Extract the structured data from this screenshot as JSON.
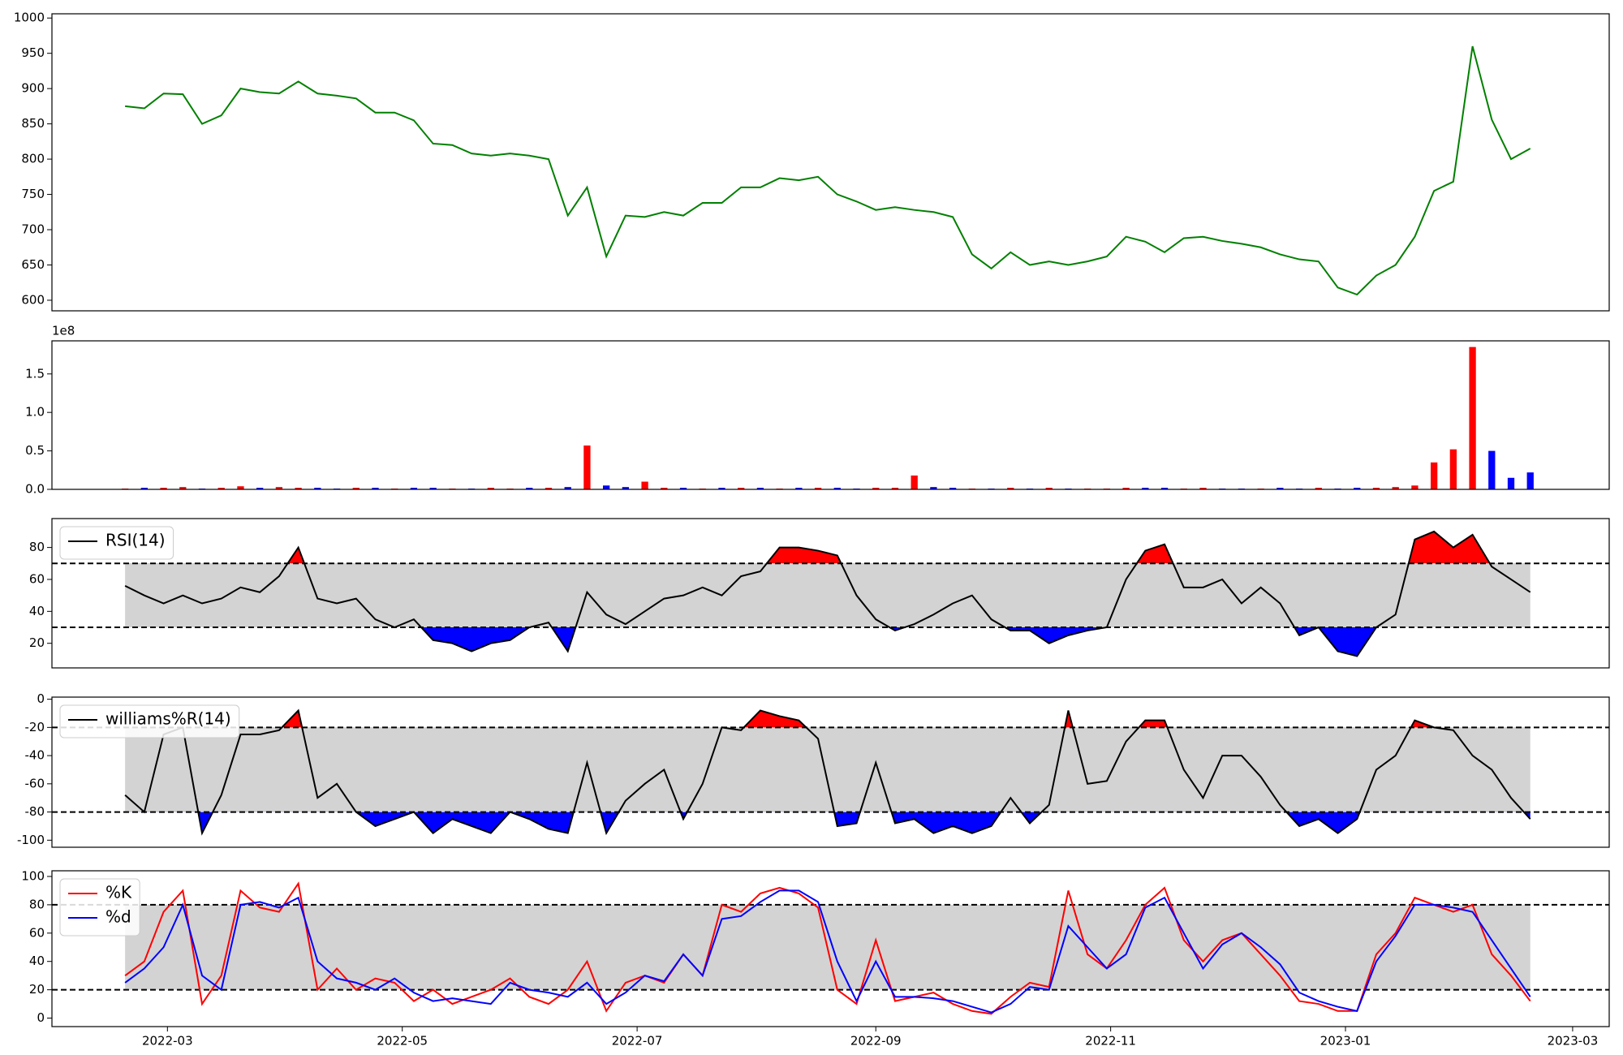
{
  "chart_data": [
    {
      "type": "line",
      "color": "green",
      "values": [
        875,
        872,
        893,
        892,
        850,
        862,
        900,
        895,
        893,
        910,
        893,
        890,
        886,
        866,
        866,
        855,
        822,
        820,
        808,
        805,
        808,
        805,
        800,
        720,
        760,
        662,
        720,
        718,
        725,
        720,
        738,
        738,
        760,
        760,
        773,
        770,
        775,
        750,
        740,
        728,
        732,
        728,
        725,
        718,
        665,
        645,
        668,
        650,
        655,
        650,
        655,
        662,
        690,
        683,
        668,
        688,
        690,
        684,
        680,
        675,
        665,
        658,
        655,
        618,
        608,
        635,
        650,
        690,
        755,
        768,
        960,
        856,
        800,
        815
      ],
      "xlim": [
        -3.8,
        77.1
      ],
      "ylim": [
        585,
        1006
      ],
      "yticks": [
        600,
        650,
        700,
        750,
        800,
        850,
        900,
        950,
        1000
      ]
    },
    {
      "type": "bar",
      "offset_label": "1e8",
      "values": [
        0.01,
        0.02,
        0.02,
        0.03,
        0.01,
        0.02,
        0.04,
        0.02,
        0.03,
        0.02,
        0.02,
        0.01,
        0.02,
        0.02,
        0.01,
        0.02,
        0.02,
        0.01,
        0.01,
        0.02,
        0.01,
        0.02,
        0.02,
        0.03,
        0.57,
        0.05,
        0.03,
        0.1,
        0.02,
        0.02,
        0.01,
        0.02,
        0.02,
        0.02,
        0.01,
        0.02,
        0.02,
        0.02,
        0.01,
        0.02,
        0.02,
        0.18,
        0.03,
        0.02,
        0.01,
        0.01,
        0.02,
        0.01,
        0.02,
        0.01,
        0.01,
        0.01,
        0.02,
        0.02,
        0.02,
        0.01,
        0.02,
        0.01,
        0.01,
        0.01,
        0.02,
        0.01,
        0.02,
        0.01,
        0.02,
        0.02,
        0.03,
        0.05,
        0.35,
        0.52,
        1.85,
        0.5,
        0.15,
        0.22
      ],
      "bar_colors": [
        "red",
        "blue",
        "red",
        "red",
        "blue",
        "red",
        "red",
        "blue",
        "red",
        "red",
        "blue",
        "blue",
        "red",
        "blue",
        "red",
        "blue",
        "blue",
        "red",
        "blue",
        "red",
        "red",
        "blue",
        "red",
        "blue",
        "red",
        "blue",
        "blue",
        "red",
        "red",
        "blue",
        "red",
        "blue",
        "red",
        "blue",
        "red",
        "blue",
        "red",
        "blue",
        "blue",
        "red",
        "red",
        "red",
        "blue",
        "blue",
        "red",
        "blue",
        "red",
        "blue",
        "red",
        "blue",
        "red",
        "red",
        "red",
        "blue",
        "blue",
        "red",
        "red",
        "blue",
        "blue",
        "red",
        "blue",
        "blue",
        "red",
        "blue",
        "blue",
        "red",
        "red",
        "red",
        "red",
        "red",
        "red",
        "blue",
        "blue",
        "blue"
      ],
      "xlim": [
        -3.8,
        77.1
      ],
      "ylim": [
        0,
        1.93
      ],
      "yticks": [
        {
          "value": 0,
          "label": "0.0"
        },
        0.5,
        {
          "value": 1,
          "label": "1.0"
        },
        1.5
      ]
    },
    {
      "type": "line",
      "thresholds": [
        30,
        70
      ],
      "band_color": "lightgray",
      "fill_colors": [
        "blue",
        "red"
      ],
      "series": [
        {
          "name": "RSI(14)",
          "color": "black",
          "values": [
            56,
            50,
            45,
            50,
            45,
            48,
            55,
            52,
            62,
            80,
            48,
            45,
            48,
            35,
            30,
            35,
            22,
            20,
            15,
            20,
            22,
            30,
            33,
            15,
            52,
            38,
            32,
            40,
            48,
            50,
            55,
            50,
            62,
            65,
            80,
            80,
            78,
            75,
            50,
            35,
            28,
            32,
            38,
            45,
            50,
            35,
            28,
            28,
            20,
            25,
            28,
            30,
            60,
            78,
            82,
            55,
            55,
            60,
            45,
            55,
            45,
            25,
            30,
            15,
            12,
            30,
            38,
            85,
            90,
            80,
            88,
            68,
            60,
            52
          ]
        }
      ],
      "xlim": [
        -3.8,
        77.1
      ],
      "ylim": [
        4.6,
        98.1
      ],
      "yticks": [
        20,
        40,
        60,
        80
      ]
    },
    {
      "type": "line",
      "thresholds": [
        -80,
        -20
      ],
      "band_color": "lightgray",
      "fill_colors": [
        "blue",
        "red"
      ],
      "series": [
        {
          "name": "williams%R(14)",
          "color": "black",
          "values": [
            -68,
            -80,
            -25,
            -20,
            -95,
            -68,
            -25,
            -25,
            -22,
            -8,
            -70,
            -60,
            -80,
            -90,
            -85,
            -80,
            -95,
            -85,
            -90,
            -95,
            -80,
            -85,
            -92,
            -95,
            -45,
            -95,
            -72,
            -60,
            -50,
            -85,
            -60,
            -20,
            -22,
            -8,
            -12,
            -15,
            -28,
            -90,
            -88,
            -45,
            -88,
            -85,
            -95,
            -90,
            -95,
            -90,
            -70,
            -88,
            -75,
            -8,
            -60,
            -58,
            -30,
            -15,
            -15,
            -50,
            -70,
            -40,
            -40,
            -55,
            -75,
            -90,
            -85,
            -95,
            -85,
            -50,
            -40,
            -15,
            -20,
            -22,
            -40,
            -50,
            -70,
            -85
          ]
        }
      ],
      "xlim": [
        -3.8,
        77.1
      ],
      "ylim": [
        -105,
        1.5
      ],
      "yticks": [
        -100,
        -80,
        -60,
        -40,
        -20,
        0
      ]
    },
    {
      "type": "line",
      "thresholds": [
        20,
        80
      ],
      "band_color": "lightgray",
      "series": [
        {
          "name": "%K",
          "color": "red",
          "values": [
            30,
            40,
            75,
            90,
            10,
            30,
            90,
            78,
            75,
            95,
            20,
            35,
            20,
            28,
            25,
            12,
            20,
            10,
            15,
            20,
            28,
            15,
            10,
            20,
            40,
            5,
            25,
            30,
            25,
            45,
            30,
            80,
            75,
            88,
            92,
            88,
            78,
            20,
            10,
            55,
            12,
            15,
            18,
            10,
            5,
            3,
            15,
            25,
            22,
            90,
            45,
            35,
            55,
            80,
            92,
            55,
            40,
            55,
            60,
            45,
            30,
            12,
            10,
            5,
            5,
            45,
            60,
            85,
            80,
            75,
            80,
            45,
            30,
            12
          ]
        },
        {
          "name": "%d",
          "color": "blue",
          "values": [
            25,
            35,
            50,
            80,
            30,
            20,
            80,
            82,
            78,
            85,
            40,
            28,
            25,
            20,
            28,
            18,
            12,
            14,
            12,
            10,
            25,
            20,
            18,
            15,
            25,
            10,
            18,
            30,
            26,
            45,
            30,
            70,
            72,
            82,
            90,
            90,
            82,
            40,
            12,
            40,
            15,
            15,
            14,
            12,
            8,
            4,
            10,
            22,
            20,
            65,
            50,
            35,
            45,
            78,
            85,
            60,
            35,
            52,
            60,
            50,
            38,
            18,
            12,
            8,
            5,
            40,
            58,
            80,
            80,
            78,
            75,
            55,
            35,
            15
          ]
        }
      ],
      "xlim": [
        -3.8,
        77.1
      ],
      "ylim": [
        -6,
        104
      ],
      "yticks": [
        0,
        20,
        40,
        60,
        80,
        100
      ],
      "xticks": [
        {
          "value": 2.2,
          "label": "2022-03"
        },
        {
          "value": 14.4,
          "label": "2022-05"
        },
        {
          "value": 26.6,
          "label": "2022-07"
        },
        {
          "value": 39,
          "label": "2022-09"
        },
        {
          "value": 51.2,
          "label": "2022-11"
        },
        {
          "value": 63.4,
          "label": "2023-01"
        },
        {
          "value": 75.2,
          "label": "2023-03"
        }
      ]
    }
  ]
}
